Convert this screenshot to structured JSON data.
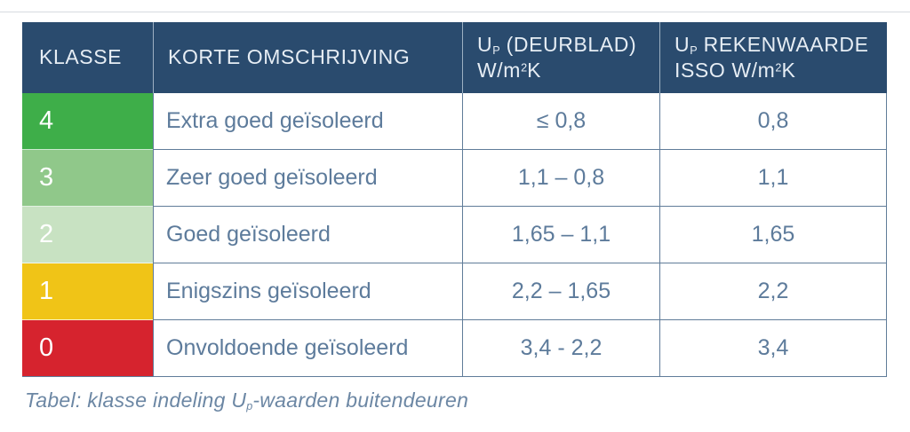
{
  "page": {
    "background": "#ffffff",
    "hairline_color": "#d7dbe0"
  },
  "table": {
    "colors": {
      "header_bg": "#2a4b6e",
      "header_text": "#e6edf4",
      "body_text": "#5d7b9b",
      "border": "#607c99"
    },
    "header": {
      "columns": [
        {
          "label": "KLASSE"
        },
        {
          "label": "KORTE OMSCHRIJVING"
        },
        {
          "base": "U",
          "sub": "P",
          "rest": " (DEURBLAD)",
          "line2_pre": "W/m",
          "sup": "2",
          "line2_post": "K"
        },
        {
          "base": "U",
          "sub": "P",
          "rest": " REKENWAARDE",
          "line2_pre": "ISSO W/m",
          "sup": "2",
          "line2_post": "K"
        }
      ]
    },
    "rows": [
      {
        "klasse": "4",
        "color": "#3eae49",
        "omschrijving": "Extra goed geïsoleerd",
        "deurblad": "≤ 0,8",
        "rekenwaarde": "0,8"
      },
      {
        "klasse": "3",
        "color": "#90c88a",
        "omschrijving": "Zeer goed geïsoleerd",
        "deurblad": "1,1 – 0,8",
        "rekenwaarde": "1,1"
      },
      {
        "klasse": "2",
        "color": "#c8e2c2",
        "omschrijving": "Goed geïsoleerd",
        "deurblad": "1,65 – 1,1",
        "rekenwaarde": "1,65"
      },
      {
        "klasse": "1",
        "color": "#f0c417",
        "omschrijving": "Enigszins geïsoleerd",
        "deurblad": "2,2 – 1,65",
        "rekenwaarde": "2,2"
      },
      {
        "klasse": "0",
        "color": "#d6232e",
        "omschrijving": "Onvoldoende geïsoleerd",
        "deurblad": "3,4 - 2,2",
        "rekenwaarde": "3,4"
      }
    ]
  },
  "caption": {
    "pre": "Tabel: klasse indeling U",
    "sub": "p",
    "post": "-waarden buitendeuren"
  }
}
